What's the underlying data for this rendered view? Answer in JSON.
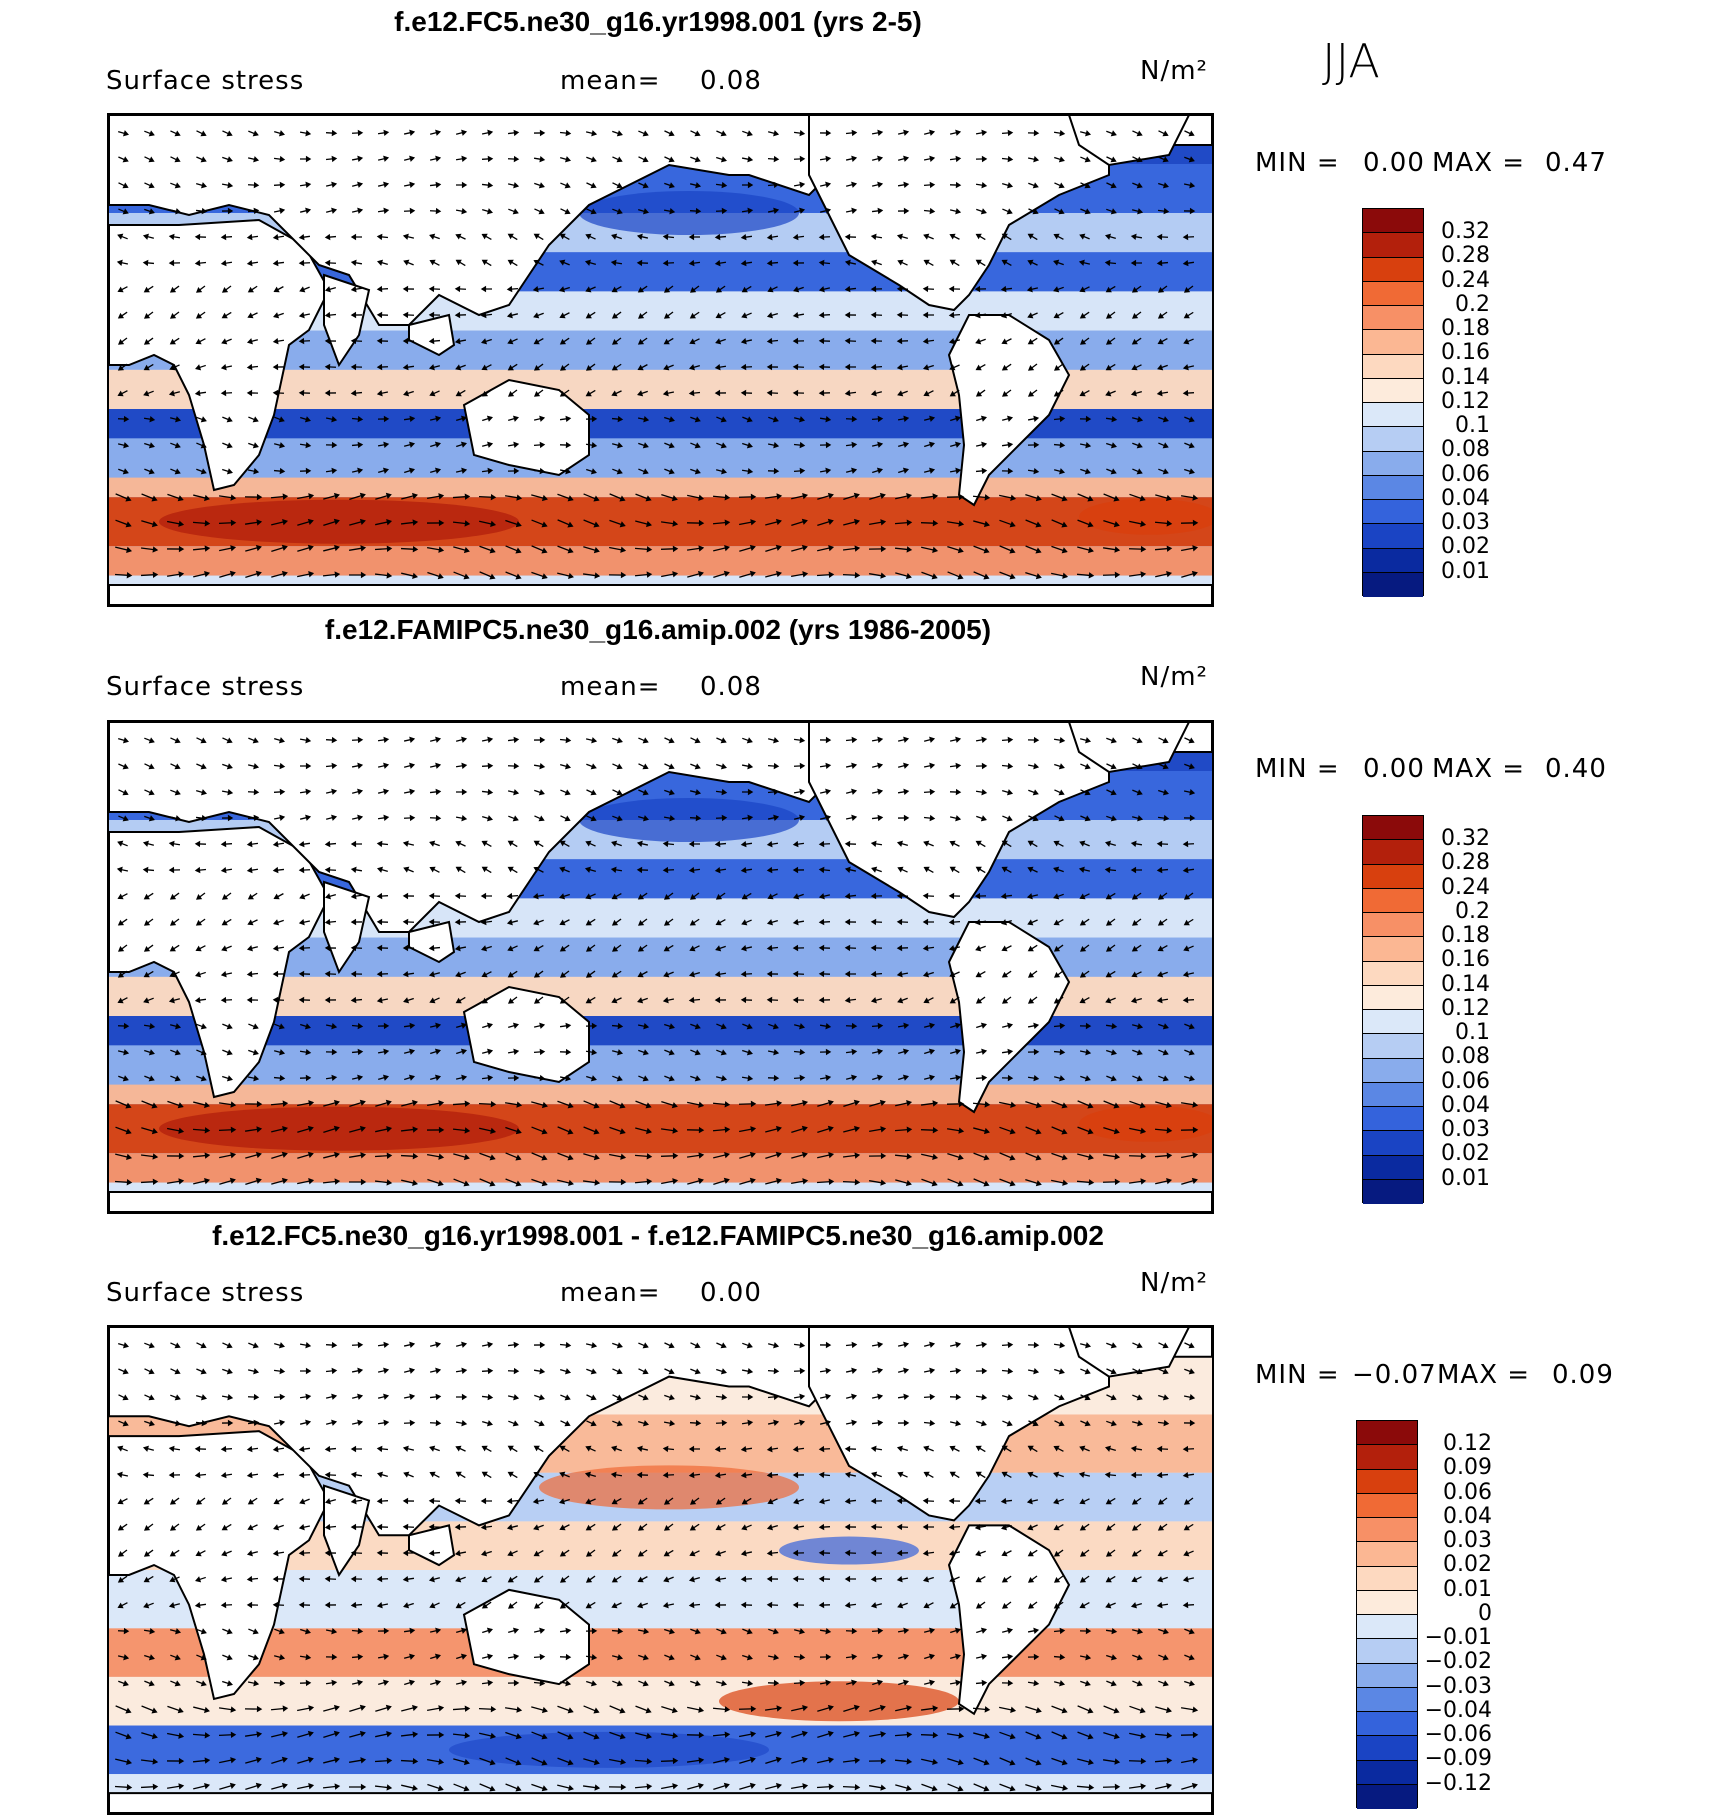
{
  "season": "JJA",
  "panels": [
    {
      "title": "f.e12.FC5.ne30_g16.yr1998.001 (yrs 2-5)",
      "variable": "Surface stress",
      "mean_label": "mean=",
      "mean_value": "0.08",
      "units": "N/m²",
      "min_label": "MIN =",
      "min_value": "0.00",
      "max_label": "MAX =",
      "max_value": "0.47",
      "colorbar": {
        "labels": [
          "0.32",
          "0.28",
          "0.24",
          "0.2",
          "0.18",
          "0.16",
          "0.14",
          "0.12",
          "0.1",
          "0.08",
          "0.06",
          "0.04",
          "0.03",
          "0.02",
          "0.01"
        ],
        "colors": [
          "#8b0a0a",
          "#b3200c",
          "#d8400e",
          "#f06a35",
          "#f79066",
          "#fbb793",
          "#fdd9c0",
          "#fdebdc",
          "#dbe8f9",
          "#b6cdf3",
          "#89acec",
          "#5b87e4",
          "#3463dc",
          "#1a44c4",
          "#0a2aa0",
          "#061a80"
        ]
      },
      "pattern": "mean1"
    },
    {
      "title": "f.e12.FAMIPC5.ne30_g16.amip.002 (yrs 1986-2005)",
      "variable": "Surface stress",
      "mean_label": "mean=",
      "mean_value": "0.08",
      "units": "N/m²",
      "min_label": "MIN =",
      "min_value": "0.00",
      "max_label": "MAX =",
      "max_value": "0.40",
      "colorbar": {
        "labels": [
          "0.32",
          "0.28",
          "0.24",
          "0.2",
          "0.18",
          "0.16",
          "0.14",
          "0.12",
          "0.1",
          "0.08",
          "0.06",
          "0.04",
          "0.03",
          "0.02",
          "0.01"
        ],
        "colors": [
          "#8b0a0a",
          "#b3200c",
          "#d8400e",
          "#f06a35",
          "#f79066",
          "#fbb793",
          "#fdd9c0",
          "#fdebdc",
          "#dbe8f9",
          "#b6cdf3",
          "#89acec",
          "#5b87e4",
          "#3463dc",
          "#1a44c4",
          "#0a2aa0",
          "#061a80"
        ]
      },
      "pattern": "mean2"
    },
    {
      "title": "f.e12.FC5.ne30_g16.yr1998.001 - f.e12.FAMIPC5.ne30_g16.amip.002",
      "variable": "Surface stress",
      "mean_label": "mean=",
      "mean_value": "0.00",
      "units": "N/m²",
      "min_label": "MIN =",
      "min_value": "−0.07",
      "max_label": "MAX =",
      "max_value": "0.09",
      "colorbar": {
        "labels": [
          "0.12",
          "0.09",
          "0.06",
          "0.04",
          "0.03",
          "0.02",
          "0.01",
          "0",
          "−0.01",
          "−0.02",
          "−0.03",
          "−0.04",
          "−0.06",
          "−0.09",
          "−0.12"
        ],
        "colors": [
          "#8b0a0a",
          "#b3200c",
          "#d8400e",
          "#f06a35",
          "#f79066",
          "#fbb793",
          "#fdd9c0",
          "#fdebdc",
          "#dbe8f9",
          "#b6cdf3",
          "#89acec",
          "#5b87e4",
          "#3463dc",
          "#1a44c4",
          "#0a2aa0",
          "#061a80"
        ]
      },
      "pattern": "diff"
    }
  ]
}
